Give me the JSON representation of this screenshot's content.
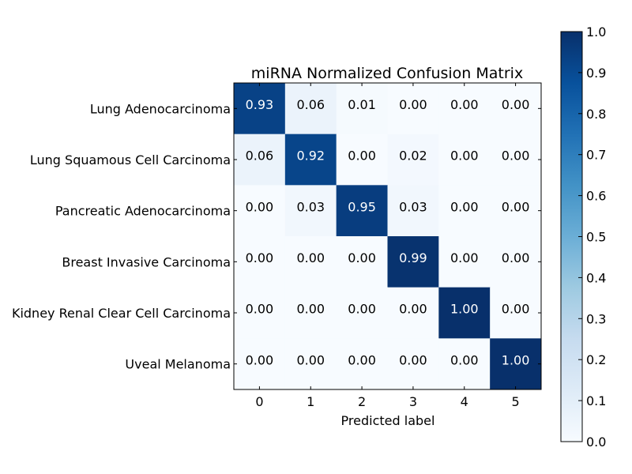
{
  "chart_data": {
    "type": "heatmap",
    "title": "miRNA Normalized Confusion Matrix",
    "xlabel": "Predicted label",
    "ylabel": "",
    "x_tick_labels": [
      "0",
      "1",
      "2",
      "3",
      "4",
      "5"
    ],
    "y_tick_labels": [
      "Lung Adenocarcinoma",
      "Lung Squamous Cell Carcinoma",
      "Pancreatic Adenocarcinoma",
      "Breast Invasive Carcinoma",
      "Kidney Renal Clear Cell Carcinoma",
      "Uveal Melanoma"
    ],
    "values": [
      [
        0.93,
        0.06,
        0.01,
        0.0,
        0.0,
        0.0
      ],
      [
        0.06,
        0.92,
        0.0,
        0.02,
        0.0,
        0.0
      ],
      [
        0.0,
        0.03,
        0.95,
        0.03,
        0.0,
        0.0
      ],
      [
        0.0,
        0.0,
        0.0,
        0.99,
        0.0,
        0.0
      ],
      [
        0.0,
        0.0,
        0.0,
        0.0,
        1.0,
        0.0
      ],
      [
        0.0,
        0.0,
        0.0,
        0.0,
        0.0,
        1.0
      ]
    ],
    "colormap": "Blues",
    "colorbar": {
      "range": [
        0.0,
        1.0
      ],
      "ticks": [
        "0.0",
        "0.1",
        "0.2",
        "0.3",
        "0.4",
        "0.5",
        "0.6",
        "0.7",
        "0.8",
        "0.9",
        "1.0"
      ]
    },
    "grid": false
  }
}
